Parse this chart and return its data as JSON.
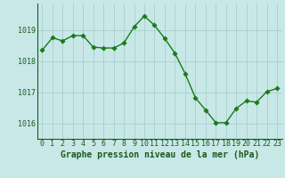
{
  "x": [
    0,
    1,
    2,
    3,
    4,
    5,
    6,
    7,
    8,
    9,
    10,
    11,
    12,
    13,
    14,
    15,
    16,
    17,
    18,
    19,
    20,
    21,
    22,
    23
  ],
  "y": [
    1018.35,
    1018.75,
    1018.65,
    1018.82,
    1018.82,
    1018.45,
    1018.42,
    1018.42,
    1018.58,
    1019.1,
    1019.45,
    1019.15,
    1018.73,
    1018.25,
    1017.6,
    1016.82,
    1016.43,
    1016.02,
    1016.02,
    1016.48,
    1016.72,
    1016.68,
    1017.02,
    1017.12
  ],
  "line_color": "#1a7a1a",
  "marker_color": "#1a7a1a",
  "bg_color": "#c8e8e8",
  "grid_color": "#a8cece",
  "axis_label_color": "#1a5a1a",
  "tick_color": "#1a5a1a",
  "title": "Graphe pression niveau de la mer (hPa)",
  "xlim": [
    -0.5,
    23.5
  ],
  "ylim": [
    1015.5,
    1019.85
  ],
  "yticks": [
    1016,
    1017,
    1018,
    1019
  ],
  "xticks": [
    0,
    1,
    2,
    3,
    4,
    5,
    6,
    7,
    8,
    9,
    10,
    11,
    12,
    13,
    14,
    15,
    16,
    17,
    18,
    19,
    20,
    21,
    22,
    23
  ],
  "title_fontsize": 7.0,
  "tick_fontsize": 6.0,
  "linewidth": 1.0,
  "markersize": 2.8
}
